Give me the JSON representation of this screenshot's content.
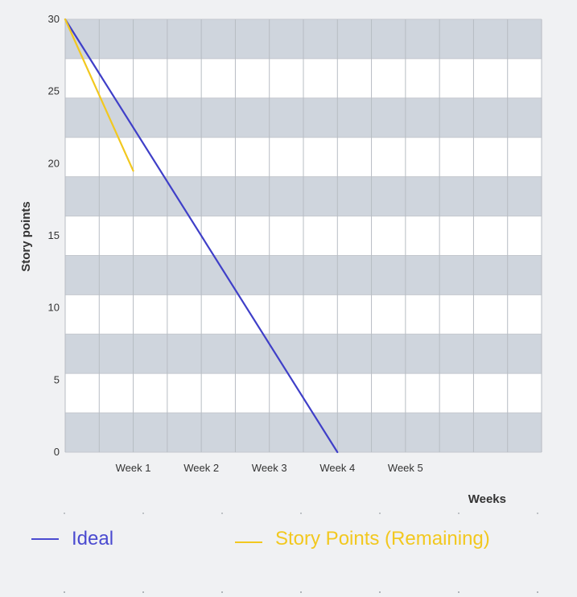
{
  "chart_data": {
    "type": "line",
    "xlabel": "Weeks",
    "ylabel": "Story points",
    "categories": [
      "",
      "Week 1",
      "Week 2",
      "Week 3",
      "Week 4",
      "Week 5"
    ],
    "x_tick_values": [
      1,
      2,
      3,
      4,
      5
    ],
    "xlim": [
      0,
      7
    ],
    "yticks": [
      0,
      5,
      10,
      15,
      20,
      25,
      30
    ],
    "ylim": [
      0,
      30
    ],
    "grid": true,
    "legend_position": "bottom",
    "series": [
      {
        "name": "Ideal",
        "color": "#3f3fc8",
        "points": [
          [
            0,
            30
          ],
          [
            4,
            0
          ]
        ]
      },
      {
        "name": "Story Points (Remaining)",
        "color": "#f2c81f",
        "points": [
          [
            0,
            30
          ],
          [
            1,
            19.5
          ]
        ]
      }
    ]
  },
  "legend": {
    "items": [
      {
        "label": "Ideal",
        "color": "#4a4ad0"
      },
      {
        "label": "Story Points (Remaining)",
        "color": "#f2c81f"
      }
    ]
  }
}
